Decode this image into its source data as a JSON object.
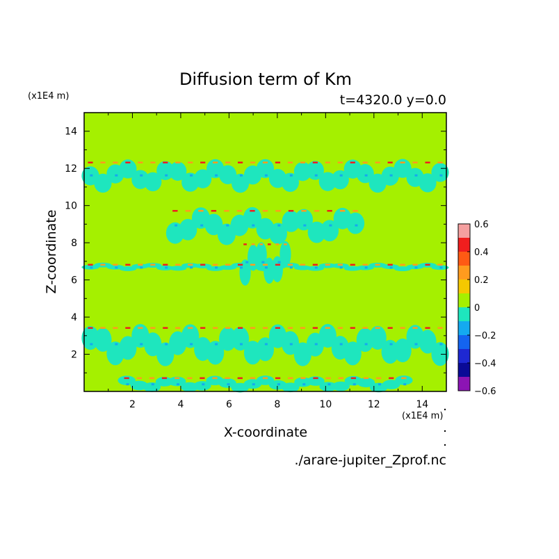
{
  "chart_data": {
    "type": "heatmap",
    "title": "Diffusion term of Km",
    "subtitle": "t=4320.0 y=0.0",
    "xlabel": "X-coordinate",
    "ylabel": "Z-coordinate",
    "x_unit": "(x1E4 m)",
    "y_unit": "(x1E4 m)",
    "source": "./arare-jupiter_Zprof.nc",
    "xlim": [
      0,
      15
    ],
    "ylim": [
      0,
      15
    ],
    "x_ticks": [
      2,
      4,
      6,
      8,
      10,
      12,
      14
    ],
    "y_ticks": [
      2,
      4,
      6,
      8,
      10,
      12,
      14
    ],
    "grid": false,
    "legend": "right",
    "colorbar": {
      "range": [
        -0.6,
        0.6
      ],
      "tick_values": [
        0.6,
        0.4,
        0.2,
        0,
        -0.2,
        -0.4,
        -0.6
      ],
      "tick_labels": [
        "0.6",
        "0.4",
        "0.2",
        "0",
        "−0.2",
        "−0.4",
        "−0.6"
      ],
      "levels": [
        {
          "range": [
            0.5,
            0.6
          ],
          "color": "#f5a0a0"
        },
        {
          "range": [
            0.4,
            0.5
          ],
          "color": "#f01e1e"
        },
        {
          "range": [
            0.3,
            0.4
          ],
          "color": "#ff5a14"
        },
        {
          "range": [
            0.2,
            0.3
          ],
          "color": "#ff9b1e"
        },
        {
          "range": [
            0.1,
            0.2
          ],
          "color": "#f5c800"
        },
        {
          "range": [
            0.0,
            0.1
          ],
          "color": "#a5f000"
        },
        {
          "range": [
            -0.1,
            0.0
          ],
          "color": "#1ee6be"
        },
        {
          "range": [
            -0.2,
            -0.1
          ],
          "color": "#14aaf0"
        },
        {
          "range": [
            -0.3,
            -0.2
          ],
          "color": "#1464f0"
        },
        {
          "range": [
            -0.4,
            -0.3
          ],
          "color": "#1e28d2"
        },
        {
          "range": [
            -0.5,
            -0.4
          ],
          "color": "#0a0a96"
        },
        {
          "range": [
            -0.6,
            -0.5
          ],
          "color": "#8c14b4"
        }
      ]
    },
    "background_color": "#a5f000",
    "features": [
      {
        "x": [
          0,
          15
        ],
        "z": [
          10.8,
          12.4
        ],
        "value": -0.1,
        "desc": "turbulent band near top"
      },
      {
        "x": [
          3.5,
          11.5
        ],
        "z": [
          8.0,
          9.8
        ],
        "value": -0.1,
        "desc": "wing-shaped band"
      },
      {
        "x": [
          6.5,
          8.5
        ],
        "z": [
          5.8,
          8.0
        ],
        "value": -0.1,
        "desc": "central column"
      },
      {
        "x": [
          0,
          15
        ],
        "z": [
          6.5,
          6.9
        ],
        "value": -0.1,
        "desc": "horizontal streaks"
      },
      {
        "x": [
          0,
          15
        ],
        "z": [
          1.5,
          3.5
        ],
        "value": -0.1,
        "desc": "lower fan band"
      },
      {
        "x": [
          1.5,
          13.5
        ],
        "z": [
          0,
          0.8
        ],
        "value": -0.1,
        "desc": "bottom arcs"
      }
    ]
  }
}
